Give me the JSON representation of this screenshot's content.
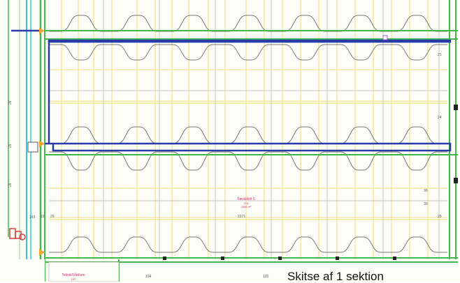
{
  "room": {
    "name": "Færdsfelt 5",
    "number": "213",
    "area": "3355 m²"
  },
  "lower_room": {
    "name": "Teknik/Vådrum",
    "number": "107"
  },
  "dimensions": {
    "bottom_left_1": "143",
    "bottom_left_2": "13",
    "bottom_left_3": "29",
    "bottom_mid": "2371",
    "left_1": "28",
    "left_2": "29",
    "left_3": "28",
    "right_1": "21",
    "right_2": "24",
    "right_3": "30",
    "right_4": "30",
    "right_5": "29",
    "lower_1": "104",
    "lower_2": "120"
  },
  "caption": "Skitse af 1 sektion",
  "colors": {
    "outline_blue": "#2a3aa8",
    "green_wall": "#43b84a",
    "yellow_grid": "#efe07a",
    "cyan_pipe": "#39c6df",
    "orange_node": "#f2a22e",
    "room_label": "#d6246e",
    "red_detail": "#d94040"
  }
}
